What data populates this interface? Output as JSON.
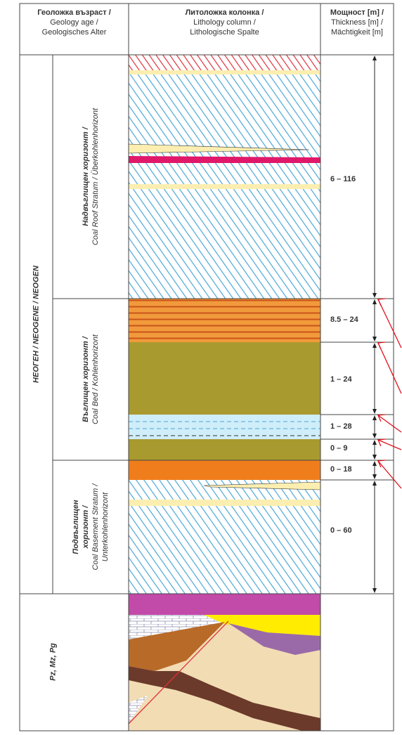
{
  "header": {
    "age": [
      "Геоложка възраст /",
      "Geology age /",
      "Geologisches Alter"
    ],
    "lithology": [
      "Литоложка колонка /",
      "Lithology column /",
      "Lithologische Spalte"
    ],
    "thickness": [
      "Мощност [m] /",
      "Thickness [m] /",
      "Mächtigkeit [m]"
    ]
  },
  "periods": [
    "НЕОГЕН / NEOGENE / NEOGEN",
    "Pz, Mz, Pg"
  ],
  "horizons": [
    [
      "Надвъглищен хоризонт /",
      "Coal Roof Stratum / Überkohlenhorizont"
    ],
    [
      "Въглищен хоризонт /",
      "Coal Bed / Kohlenhorizont"
    ],
    [
      "Подвъглищен",
      "хоризонт /",
      "Coal Basement Stratum /",
      "Unterkohlenhorizont"
    ]
  ],
  "thickness": [
    "6 – 116",
    "8.5 – 24",
    "1 – 24",
    "1 – 28",
    "0 – 9",
    "0 – 18",
    "0 – 60"
  ]
}
